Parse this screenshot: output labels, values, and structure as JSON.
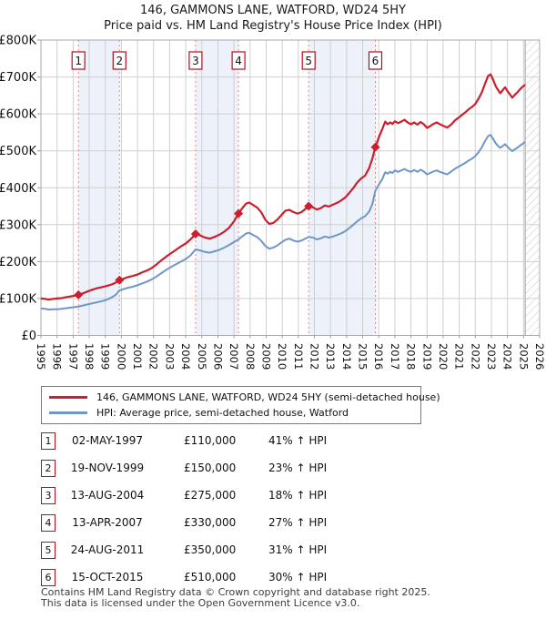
{
  "header": {
    "title": "146, GAMMONS LANE, WATFORD, WD24 5HY",
    "subtitle": "Price paid vs. HM Land Registry's House Price Index (HPI)"
  },
  "chart_data": {
    "type": "line",
    "x_axis": {
      "min": 1995,
      "max": 2026,
      "tick_years": [
        1995,
        1996,
        1997,
        1998,
        1999,
        2000,
        2001,
        2002,
        2003,
        2004,
        2005,
        2006,
        2007,
        2008,
        2009,
        2010,
        2011,
        2012,
        2013,
        2014,
        2015,
        2016,
        2017,
        2018,
        2019,
        2020,
        2021,
        2022,
        2023,
        2024,
        2025,
        2026
      ]
    },
    "y_axis": {
      "min": 0,
      "max": 800000,
      "tick_step": 100000,
      "tick_labels": [
        "£0",
        "£100K",
        "£200K",
        "£300K",
        "£400K",
        "£500K",
        "£600K",
        "£700K",
        "£800K"
      ]
    },
    "series": [
      {
        "name": "146, GAMMONS LANE, WATFORD, WD24 5HY (semi-detached house)",
        "color": "#cc1e2c",
        "points": [
          [
            1995.0,
            100
          ],
          [
            1995.25,
            99
          ],
          [
            1995.5,
            97
          ],
          [
            1995.75,
            99
          ],
          [
            1996.0,
            100
          ],
          [
            1996.3,
            101
          ],
          [
            1996.6,
            104
          ],
          [
            1996.9,
            106
          ],
          [
            1997.33,
            110
          ],
          [
            1997.6,
            114
          ],
          [
            1997.9,
            119
          ],
          [
            1998.2,
            124
          ],
          [
            1998.5,
            128
          ],
          [
            1998.8,
            131
          ],
          [
            1999.1,
            134
          ],
          [
            1999.4,
            138
          ],
          [
            1999.65,
            143
          ],
          [
            1999.88,
            150
          ],
          [
            2000.1,
            153
          ],
          [
            2000.4,
            158
          ],
          [
            2000.7,
            161
          ],
          [
            2001.0,
            165
          ],
          [
            2001.3,
            171
          ],
          [
            2001.6,
            176
          ],
          [
            2001.9,
            183
          ],
          [
            2002.2,
            193
          ],
          [
            2002.5,
            204
          ],
          [
            2002.8,
            214
          ],
          [
            2003.1,
            223
          ],
          [
            2003.4,
            232
          ],
          [
            2003.7,
            241
          ],
          [
            2004.0,
            249
          ],
          [
            2004.3,
            260
          ],
          [
            2004.61,
            275
          ],
          [
            2004.9,
            271
          ],
          [
            2005.2,
            265
          ],
          [
            2005.5,
            262
          ],
          [
            2005.8,
            267
          ],
          [
            2006.1,
            273
          ],
          [
            2006.4,
            281
          ],
          [
            2006.7,
            292
          ],
          [
            2007.0,
            309
          ],
          [
            2007.28,
            330
          ],
          [
            2007.5,
            344
          ],
          [
            2007.75,
            357
          ],
          [
            2007.95,
            360
          ],
          [
            2008.2,
            353
          ],
          [
            2008.45,
            346
          ],
          [
            2008.7,
            333
          ],
          [
            2008.95,
            313
          ],
          [
            2009.2,
            302
          ],
          [
            2009.45,
            305
          ],
          [
            2009.7,
            314
          ],
          [
            2009.95,
            326
          ],
          [
            2010.2,
            338
          ],
          [
            2010.45,
            340
          ],
          [
            2010.7,
            334
          ],
          [
            2010.95,
            330
          ],
          [
            2011.2,
            334
          ],
          [
            2011.64,
            350
          ],
          [
            2011.9,
            347
          ],
          [
            2012.15,
            341
          ],
          [
            2012.4,
            345
          ],
          [
            2012.65,
            352
          ],
          [
            2012.9,
            349
          ],
          [
            2013.15,
            354
          ],
          [
            2013.4,
            359
          ],
          [
            2013.65,
            365
          ],
          [
            2013.9,
            373
          ],
          [
            2014.15,
            385
          ],
          [
            2014.4,
            398
          ],
          [
            2014.65,
            414
          ],
          [
            2014.9,
            425
          ],
          [
            2015.15,
            433
          ],
          [
            2015.4,
            453
          ],
          [
            2015.6,
            479
          ],
          [
            2015.79,
            510
          ],
          [
            2016.0,
            536
          ],
          [
            2016.2,
            557
          ],
          [
            2016.4,
            579
          ],
          [
            2016.55,
            572
          ],
          [
            2016.7,
            577
          ],
          [
            2016.85,
            573
          ],
          [
            2017.0,
            580
          ],
          [
            2017.2,
            575
          ],
          [
            2017.4,
            579
          ],
          [
            2017.6,
            584
          ],
          [
            2017.8,
            577
          ],
          [
            2018.0,
            572
          ],
          [
            2018.2,
            577
          ],
          [
            2018.4,
            571
          ],
          [
            2018.6,
            578
          ],
          [
            2018.8,
            572
          ],
          [
            2019.0,
            562
          ],
          [
            2019.2,
            567
          ],
          [
            2019.4,
            573
          ],
          [
            2019.6,
            577
          ],
          [
            2019.8,
            572
          ],
          [
            2020.0,
            568
          ],
          [
            2020.25,
            563
          ],
          [
            2020.5,
            571
          ],
          [
            2020.75,
            583
          ],
          [
            2021.0,
            591
          ],
          [
            2021.2,
            598
          ],
          [
            2021.4,
            605
          ],
          [
            2021.6,
            613
          ],
          [
            2021.8,
            619
          ],
          [
            2022.0,
            627
          ],
          [
            2022.2,
            641
          ],
          [
            2022.4,
            658
          ],
          [
            2022.6,
            681
          ],
          [
            2022.8,
            703
          ],
          [
            2022.95,
            707
          ],
          [
            2023.1,
            694
          ],
          [
            2023.25,
            677
          ],
          [
            2023.4,
            666
          ],
          [
            2023.55,
            656
          ],
          [
            2023.7,
            664
          ],
          [
            2023.85,
            672
          ],
          [
            2024.0,
            662
          ],
          [
            2024.15,
            653
          ],
          [
            2024.3,
            644
          ],
          [
            2024.45,
            651
          ],
          [
            2024.6,
            658
          ],
          [
            2024.75,
            665
          ],
          [
            2024.9,
            672
          ],
          [
            2025.1,
            679
          ]
        ]
      },
      {
        "name": "HPI: Average price, semi-detached house, Watford",
        "color": "#6e96c8",
        "points": [
          [
            1995.0,
            73
          ],
          [
            1995.25,
            72
          ],
          [
            1995.5,
            70
          ],
          [
            1995.75,
            71
          ],
          [
            1996.0,
            71
          ],
          [
            1996.3,
            72
          ],
          [
            1996.6,
            74
          ],
          [
            1996.9,
            76
          ],
          [
            1997.33,
            78
          ],
          [
            1997.6,
            81
          ],
          [
            1997.9,
            84
          ],
          [
            1998.2,
            87
          ],
          [
            1998.5,
            90
          ],
          [
            1998.8,
            93
          ],
          [
            1999.1,
            97
          ],
          [
            1999.4,
            103
          ],
          [
            1999.65,
            110
          ],
          [
            1999.88,
            122
          ],
          [
            2000.1,
            125
          ],
          [
            2000.4,
            129
          ],
          [
            2000.7,
            132
          ],
          [
            2001.0,
            136
          ],
          [
            2001.3,
            141
          ],
          [
            2001.6,
            146
          ],
          [
            2001.9,
            152
          ],
          [
            2002.2,
            160
          ],
          [
            2002.5,
            169
          ],
          [
            2002.8,
            178
          ],
          [
            2003.1,
            186
          ],
          [
            2003.4,
            193
          ],
          [
            2003.7,
            200
          ],
          [
            2004.0,
            207
          ],
          [
            2004.3,
            217
          ],
          [
            2004.61,
            233
          ],
          [
            2004.9,
            230
          ],
          [
            2005.2,
            226
          ],
          [
            2005.5,
            224
          ],
          [
            2005.8,
            228
          ],
          [
            2006.1,
            232
          ],
          [
            2006.4,
            238
          ],
          [
            2006.7,
            245
          ],
          [
            2007.0,
            253
          ],
          [
            2007.28,
            260
          ],
          [
            2007.5,
            268
          ],
          [
            2007.75,
            276
          ],
          [
            2007.95,
            278
          ],
          [
            2008.2,
            272
          ],
          [
            2008.45,
            266
          ],
          [
            2008.7,
            256
          ],
          [
            2008.95,
            242
          ],
          [
            2009.2,
            235
          ],
          [
            2009.45,
            238
          ],
          [
            2009.7,
            244
          ],
          [
            2009.95,
            252
          ],
          [
            2010.2,
            259
          ],
          [
            2010.45,
            262
          ],
          [
            2010.7,
            257
          ],
          [
            2010.95,
            254
          ],
          [
            2011.2,
            257
          ],
          [
            2011.64,
            267
          ],
          [
            2011.9,
            265
          ],
          [
            2012.15,
            260
          ],
          [
            2012.4,
            263
          ],
          [
            2012.65,
            268
          ],
          [
            2012.9,
            265
          ],
          [
            2013.15,
            268
          ],
          [
            2013.4,
            272
          ],
          [
            2013.65,
            276
          ],
          [
            2013.9,
            282
          ],
          [
            2014.15,
            290
          ],
          [
            2014.4,
            299
          ],
          [
            2014.65,
            309
          ],
          [
            2014.9,
            317
          ],
          [
            2015.15,
            323
          ],
          [
            2015.4,
            335
          ],
          [
            2015.6,
            356
          ],
          [
            2015.79,
            392
          ],
          [
            2016.0,
            408
          ],
          [
            2016.2,
            422
          ],
          [
            2016.4,
            442
          ],
          [
            2016.55,
            438
          ],
          [
            2016.7,
            443
          ],
          [
            2016.85,
            440
          ],
          [
            2017.0,
            447
          ],
          [
            2017.2,
            443
          ],
          [
            2017.4,
            447
          ],
          [
            2017.6,
            451
          ],
          [
            2017.8,
            446
          ],
          [
            2018.0,
            443
          ],
          [
            2018.2,
            448
          ],
          [
            2018.4,
            443
          ],
          [
            2018.6,
            449
          ],
          [
            2018.8,
            444
          ],
          [
            2019.0,
            436
          ],
          [
            2019.2,
            440
          ],
          [
            2019.4,
            444
          ],
          [
            2019.6,
            447
          ],
          [
            2019.8,
            443
          ],
          [
            2020.0,
            440
          ],
          [
            2020.25,
            436
          ],
          [
            2020.5,
            444
          ],
          [
            2020.75,
            452
          ],
          [
            2021.0,
            458
          ],
          [
            2021.2,
            463
          ],
          [
            2021.4,
            468
          ],
          [
            2021.6,
            474
          ],
          [
            2021.8,
            479
          ],
          [
            2022.0,
            486
          ],
          [
            2022.2,
            496
          ],
          [
            2022.4,
            509
          ],
          [
            2022.6,
            526
          ],
          [
            2022.8,
            540
          ],
          [
            2022.95,
            543
          ],
          [
            2023.1,
            533
          ],
          [
            2023.25,
            522
          ],
          [
            2023.4,
            514
          ],
          [
            2023.55,
            508
          ],
          [
            2023.7,
            513
          ],
          [
            2023.85,
            518
          ],
          [
            2024.0,
            511
          ],
          [
            2024.15,
            505
          ],
          [
            2024.3,
            499
          ],
          [
            2024.45,
            504
          ],
          [
            2024.6,
            508
          ],
          [
            2024.75,
            513
          ],
          [
            2024.9,
            518
          ],
          [
            2025.1,
            524
          ]
        ]
      }
    ],
    "sale_markers": [
      {
        "label": "1",
        "year": 1997.33,
        "value_k": 110
      },
      {
        "label": "2",
        "year": 1999.88,
        "value_k": 150
      },
      {
        "label": "3",
        "year": 2004.61,
        "value_k": 275
      },
      {
        "label": "4",
        "year": 2007.28,
        "value_k": 330
      },
      {
        "label": "5",
        "year": 2011.64,
        "value_k": 350
      },
      {
        "label": "6",
        "year": 2015.79,
        "value_k": 510
      }
    ],
    "shaded_bands": [
      [
        1997.33,
        1999.88
      ],
      [
        2004.61,
        2007.28
      ],
      [
        2011.64,
        2015.79
      ]
    ],
    "hatched_region": {
      "from": 2025.1,
      "to": 2026
    },
    "colors": {
      "property_line": "#cc1e2c",
      "hpi_line": "#6e96c8",
      "sale_dashed_line": "#f28080",
      "band_fill": "#edf1fa",
      "grid": "#cfcfcf",
      "plot_border": "#aaaaaa",
      "hatch": "#c4c4c4",
      "marker_box_border": "#c00a14",
      "axis_text": "#111111"
    }
  },
  "legend": {
    "items": [
      {
        "label": "146, GAMMONS LANE, WATFORD, WD24 5HY (semi-detached house)",
        "color": "#cc1e2c"
      },
      {
        "label": "HPI: Average price, semi-detached house, Watford",
        "color": "#6e96c8"
      }
    ]
  },
  "sales_table": {
    "rows": [
      {
        "num": "1",
        "date": "02-MAY-1997",
        "price": "£110,000",
        "hpi_change": "41% ↑ HPI"
      },
      {
        "num": "2",
        "date": "19-NOV-1999",
        "price": "£150,000",
        "hpi_change": "23% ↑ HPI"
      },
      {
        "num": "3",
        "date": "13-AUG-2004",
        "price": "£275,000",
        "hpi_change": "18% ↑ HPI"
      },
      {
        "num": "4",
        "date": "13-APR-2007",
        "price": "£330,000",
        "hpi_change": "27% ↑ HPI"
      },
      {
        "num": "5",
        "date": "24-AUG-2011",
        "price": "£350,000",
        "hpi_change": "31% ↑ HPI"
      },
      {
        "num": "6",
        "date": "15-OCT-2015",
        "price": "£510,000",
        "hpi_change": "30% ↑ HPI"
      }
    ]
  },
  "footer": {
    "line1": "Contains HM Land Registry data © Crown copyright and database right 2025.",
    "line2": "This data is licensed under the Open Government Licence v3.0."
  }
}
